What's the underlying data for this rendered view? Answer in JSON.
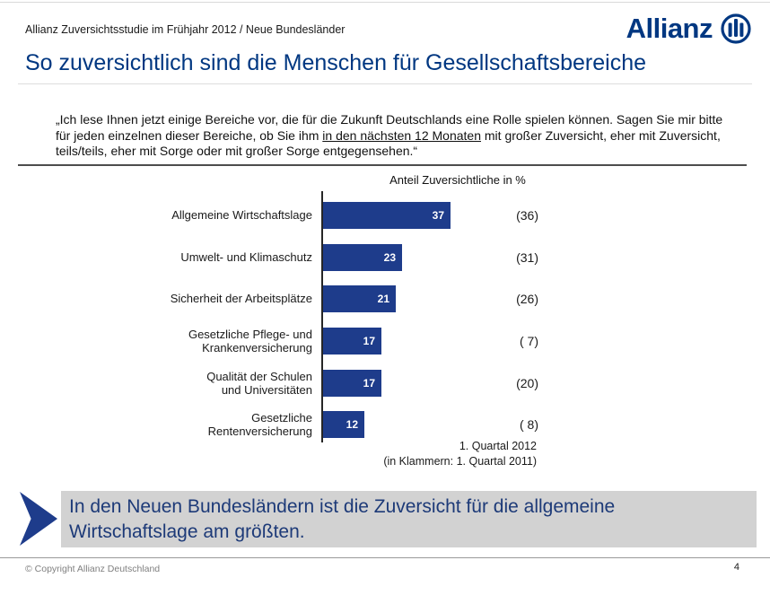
{
  "header": {
    "subtitle": "Allianz Zuversichtsstudie im Frühjahr 2012 / Neue Bundesländer",
    "brand_name": "Allianz"
  },
  "title": "So zuversichtlich sind die Menschen für Gesellschaftsbereiche",
  "quote": {
    "before": "„Ich lese Ihnen jetzt einige Bereiche vor, die für die Zukunft Deutschlands eine Rolle spielen können. Sagen Sie mir bitte für jeden einzelnen dieser Bereiche, ob Sie ihm ",
    "underlined": "in den nächsten 12 Monaten",
    "after": " mit großer Zuversicht, eher mit Zuversicht, teils/teils, eher mit Sorge oder mit großer Sorge entgegensehen.“"
  },
  "chart": {
    "axis_title": "Anteil Zuversichtliche in %",
    "rows": [
      {
        "label": "Allgemeine Wirtschaftslage",
        "value": 37,
        "value_label": "37",
        "paren": "(36)"
      },
      {
        "label": "Umwelt- und Klimaschutz",
        "value": 23,
        "value_label": "23",
        "paren": "(31)"
      },
      {
        "label": "Sicherheit der Arbeitsplätze",
        "value": 21,
        "value_label": "21",
        "paren": "(26)"
      },
      {
        "label": "Gesetzliche Pflege- und\nKrankenversicherung",
        "value": 17,
        "value_label": "17",
        "paren": "( 7)"
      },
      {
        "label": "Qualität der Schulen\nund Universitäten",
        "value": 17,
        "value_label": "17",
        "paren": "(20)"
      },
      {
        "label": "Gesetzliche\nRentenversicherung",
        "value": 12,
        "value_label": "12",
        "paren": "( 8)"
      }
    ],
    "source_line1": "1. Quartal 2012",
    "source_line2": "(in Klammern: 1. Quartal 2011)"
  },
  "chart_data": {
    "type": "bar",
    "orientation": "horizontal",
    "title": "Anteil Zuversichtliche in %",
    "categories": [
      "Allgemeine Wirtschaftslage",
      "Umwelt- und Klimaschutz",
      "Sicherheit der Arbeitsplätze",
      "Gesetzliche Pflege- und Krankenversicherung",
      "Qualität der Schulen und Universitäten",
      "Gesetzliche Rentenversicherung"
    ],
    "series": [
      {
        "name": "1. Quartal 2012",
        "values": [
          37,
          23,
          21,
          17,
          17,
          12
        ]
      },
      {
        "name": "1. Quartal 2011 (in Klammern)",
        "values": [
          36,
          31,
          26,
          7,
          20,
          8
        ]
      }
    ],
    "xlim": [
      0,
      40
    ],
    "unit": "%",
    "bar_color": "#1e3c8b",
    "grid": false,
    "legend": false,
    "value_labels": "inside-bar-end",
    "comparison_labels": "in parentheses right of bars"
  },
  "callout": {
    "text": "In den Neuen Bundesländern ist die Zuversicht für die allgemeine\nWirtschaftslage am größten."
  },
  "footer": {
    "copyright": "© Copyright Allianz Deutschland",
    "page_number": "4"
  },
  "colors": {
    "allianz_blue": "#003781",
    "bar_blue": "#1e3c8b",
    "callout_bg": "#d2d2d2",
    "callout_text": "#1d3a78"
  }
}
